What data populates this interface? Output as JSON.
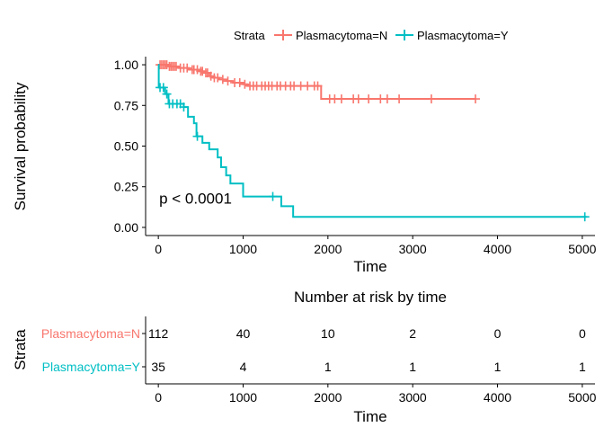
{
  "legend": {
    "title": "Strata",
    "items": [
      {
        "label": "Plasmacytoma=N",
        "color": "#F8766D"
      },
      {
        "label": "Plasmacytoma=Y",
        "color": "#00BFC4"
      }
    ]
  },
  "chart_data": [
    {
      "type": "line",
      "subtype": "kaplan-meier-step",
      "xlabel": "Time",
      "ylabel": "Survival probability",
      "xlim": [
        -150,
        5150
      ],
      "ylim": [
        -0.05,
        1.05
      ],
      "x_ticks": [
        0,
        1000,
        2000,
        3000,
        4000,
        5000
      ],
      "x_tick_labels": [
        "0",
        "1000",
        "2000",
        "3000",
        "4000",
        "5000"
      ],
      "y_ticks": [
        0,
        0.25,
        0.5,
        0.75,
        1.0
      ],
      "y_tick_labels": [
        "0.00",
        "0.25",
        "0.50",
        "0.75",
        "1.00"
      ],
      "grid": false,
      "annotation": {
        "text": "p < 0.0001",
        "x": 10,
        "y": 0.18
      },
      "series": [
        {
          "name": "Plasmacytoma=N",
          "color": "#F8766D",
          "steps": [
            [
              0,
              1.0
            ],
            [
              120,
              0.99
            ],
            [
              240,
              0.98
            ],
            [
              360,
              0.97
            ],
            [
              480,
              0.96
            ],
            [
              540,
              0.95
            ],
            [
              600,
              0.93
            ],
            [
              650,
              0.92
            ],
            [
              720,
              0.91
            ],
            [
              800,
              0.9
            ],
            [
              880,
              0.89
            ],
            [
              1000,
              0.88
            ],
            [
              1050,
              0.87
            ],
            [
              1920,
              0.87
            ],
            [
              1920,
              0.79
            ],
            [
              3750,
              0.79
            ]
          ],
          "censor_x": [
            20,
            40,
            60,
            80,
            100,
            130,
            150,
            170,
            190,
            210,
            260,
            300,
            340,
            400,
            420,
            460,
            500,
            520,
            560,
            580,
            620,
            660,
            700,
            760,
            820,
            900,
            960,
            1020,
            1080,
            1120,
            1160,
            1220,
            1260,
            1300,
            1340,
            1400,
            1440,
            1500,
            1560,
            1600,
            1680,
            1760,
            1840,
            1880,
            2020,
            2080,
            2160,
            2300,
            2360,
            2480,
            2620,
            2700,
            2840,
            3220,
            3740
          ]
        },
        {
          "name": "Plasmacytoma=Y",
          "color": "#00BFC4",
          "steps": [
            [
              0,
              1.0
            ],
            [
              5,
              0.86
            ],
            [
              60,
              0.86
            ],
            [
              80,
              0.82
            ],
            [
              120,
              0.76
            ],
            [
              300,
              0.74
            ],
            [
              350,
              0.68
            ],
            [
              420,
              0.64
            ],
            [
              450,
              0.56
            ],
            [
              520,
              0.52
            ],
            [
              600,
              0.48
            ],
            [
              700,
              0.43
            ],
            [
              740,
              0.37
            ],
            [
              800,
              0.32
            ],
            [
              850,
              0.27
            ],
            [
              1000,
              0.19
            ],
            [
              1450,
              0.19
            ],
            [
              1450,
              0.13
            ],
            [
              1590,
              0.13
            ],
            [
              1590,
              0.065
            ],
            [
              5050,
              0.065
            ]
          ],
          "censor_x": [
            20,
            60,
            100,
            130,
            170,
            220,
            260,
            300,
            460,
            1350,
            5030
          ]
        }
      ]
    },
    {
      "type": "table",
      "title": "Number at risk by time",
      "xlabel": "Time",
      "ylabel": "Strata",
      "x_ticks": [
        0,
        1000,
        2000,
        3000,
        4000,
        5000
      ],
      "x_tick_labels": [
        "0",
        "1000",
        "2000",
        "3000",
        "4000",
        "5000"
      ],
      "rows": [
        {
          "name": "Plasmacytoma=N",
          "color": "#F8766D",
          "values": [
            112,
            40,
            10,
            2,
            0,
            0
          ]
        },
        {
          "name": "Plasmacytoma=Y",
          "color": "#00BFC4",
          "values": [
            35,
            4,
            1,
            1,
            1,
            1
          ]
        }
      ]
    }
  ]
}
